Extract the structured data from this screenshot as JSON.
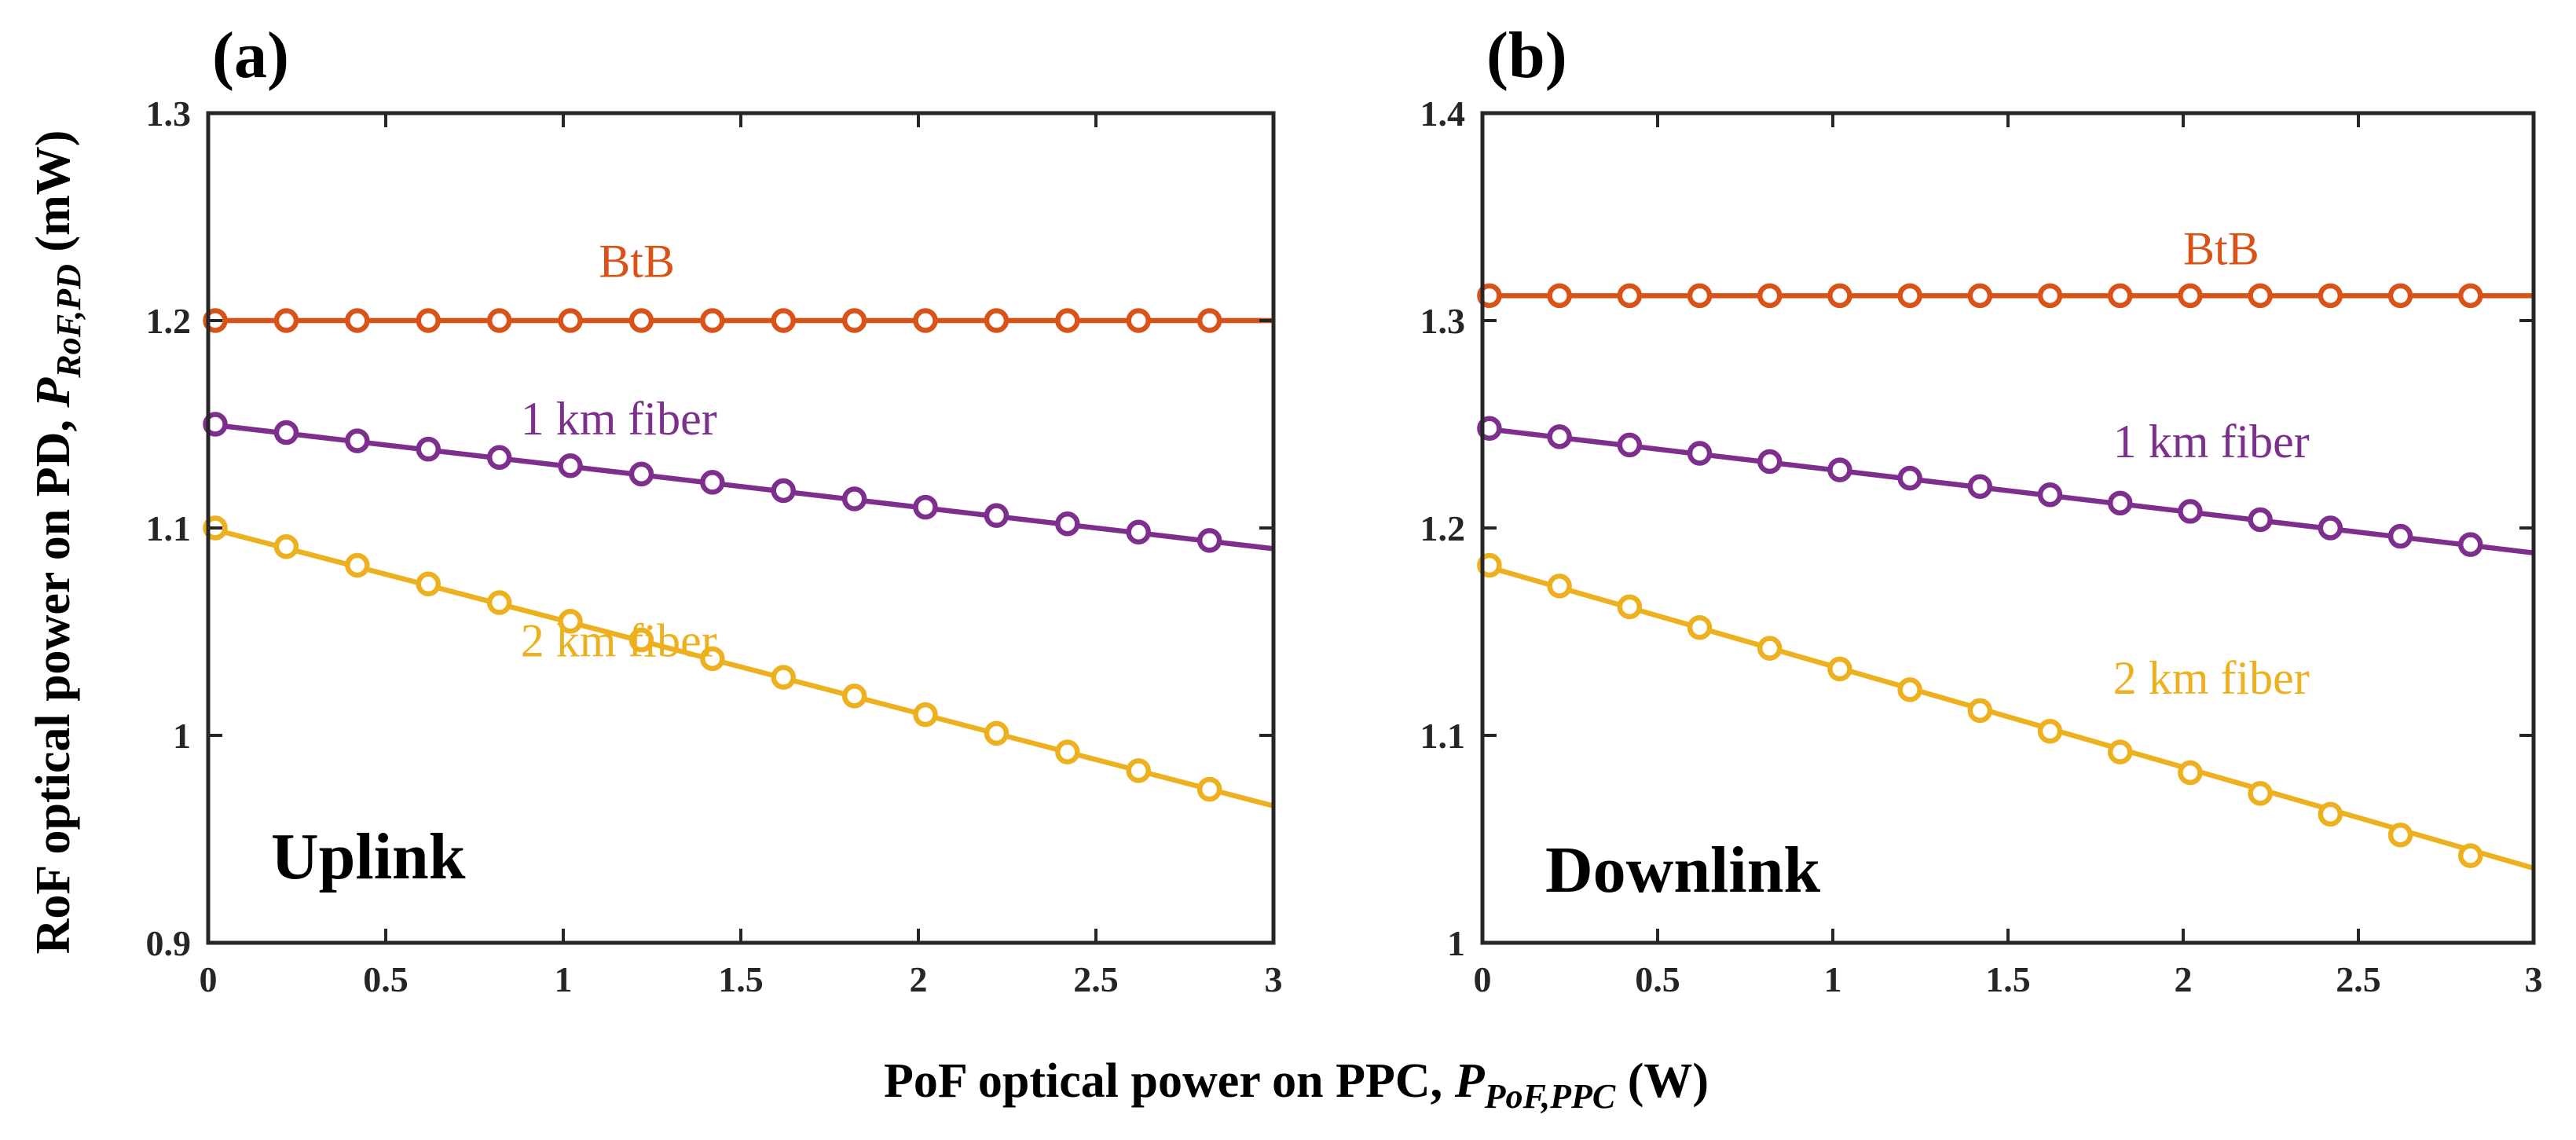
{
  "ylabel": {
    "main": "RoF optical power on PD, ",
    "sym": "P",
    "sub": "RoF,PD",
    "unit": " (mW)"
  },
  "xlabel": {
    "main": "PoF optical power on PPC, ",
    "sym": "P",
    "sub": "PoF,PPC",
    "unit": "  (W)"
  },
  "colors": {
    "btb": "#D95319",
    "km1": "#7E2F8E",
    "km2": "#EDB120",
    "axis": "#262626"
  },
  "chart_data": [
    {
      "type": "line",
      "panel_label": "(a)",
      "corner_label": "Uplink",
      "xlim": [
        0,
        3
      ],
      "ylim": [
        0.9,
        1.3
      ],
      "xticks": [
        0,
        0.5,
        1,
        1.5,
        2,
        2.5,
        3
      ],
      "yticks": [
        0.9,
        1,
        1.1,
        1.2,
        1.3
      ],
      "xtick_labels": [
        "0",
        "0.5",
        "1",
        "1.5",
        "2",
        "2.5",
        "3"
      ],
      "ytick_labels": [
        "0.9",
        "1",
        "1.1",
        "1.2",
        "1.3"
      ],
      "marker_x": [
        0.02,
        0.22,
        0.42,
        0.62,
        0.82,
        1.02,
        1.22,
        1.42,
        1.62,
        1.82,
        2.02,
        2.22,
        2.42,
        2.62,
        2.82
      ],
      "series": [
        {
          "name": "BtB",
          "color_key": "btb",
          "x": [
            0.02,
            0.22,
            0.42,
            0.62,
            0.82,
            1.02,
            1.22,
            1.42,
            1.62,
            1.82,
            2.02,
            2.22,
            2.42,
            2.62,
            2.82
          ],
          "y": [
            1.2,
            1.2,
            1.2,
            1.2,
            1.2,
            1.2,
            1.2,
            1.2,
            1.2,
            1.2,
            1.2,
            1.2,
            1.2,
            1.2,
            1.2
          ],
          "line_y": [
            1.2,
            1.2
          ],
          "label_at": [
            1.1,
            1.221
          ]
        },
        {
          "name": "1 km fiber",
          "color_key": "km1",
          "x": [
            0.02,
            0.22,
            0.42,
            0.62,
            0.82,
            1.02,
            1.22,
            1.42,
            1.62,
            1.82,
            2.02,
            2.22,
            2.42,
            2.62,
            2.82
          ],
          "y": [
            1.15,
            1.146,
            1.142,
            1.138,
            1.134,
            1.13,
            1.126,
            1.122,
            1.118,
            1.114,
            1.11,
            1.106,
            1.102,
            1.098,
            1.094
          ],
          "line_y": [
            1.15,
            1.09
          ],
          "label_at": [
            0.88,
            1.145
          ]
        },
        {
          "name": "2 km fiber",
          "color_key": "km2",
          "x": [
            0.02,
            0.22,
            0.42,
            0.62,
            0.82,
            1.02,
            1.22,
            1.42,
            1.62,
            1.82,
            2.02,
            2.22,
            2.42,
            2.62,
            2.82
          ],
          "y": [
            1.1,
            1.091,
            1.082,
            1.073,
            1.064,
            1.055,
            1.046,
            1.037,
            1.028,
            1.019,
            1.01,
            1.001,
            0.992,
            0.983,
            0.974
          ],
          "line_y": [
            1.1,
            0.966
          ],
          "label_at": [
            0.88,
            1.038
          ]
        }
      ]
    },
    {
      "type": "line",
      "panel_label": "(b)",
      "corner_label": "Downlink",
      "xlim": [
        0,
        3
      ],
      "ylim": [
        1,
        1.4
      ],
      "xticks": [
        0,
        0.5,
        1,
        1.5,
        2,
        2.5,
        3
      ],
      "yticks": [
        1,
        1.1,
        1.2,
        1.3,
        1.4
      ],
      "xtick_labels": [
        "0",
        "0.5",
        "1",
        "1.5",
        "2",
        "2.5",
        "3"
      ],
      "ytick_labels": [
        "1",
        "1.1",
        "1.2",
        "1.3",
        "1.4"
      ],
      "marker_x": [
        0.02,
        0.22,
        0.42,
        0.62,
        0.82,
        1.02,
        1.22,
        1.42,
        1.62,
        1.82,
        2.02,
        2.22,
        2.42,
        2.62,
        2.82
      ],
      "series": [
        {
          "name": "BtB",
          "color_key": "btb",
          "x": [
            0.02,
            0.22,
            0.42,
            0.62,
            0.82,
            1.02,
            1.22,
            1.42,
            1.62,
            1.82,
            2.02,
            2.22,
            2.42,
            2.62,
            2.82
          ],
          "y": [
            1.312,
            1.312,
            1.312,
            1.312,
            1.312,
            1.312,
            1.312,
            1.312,
            1.312,
            1.312,
            1.312,
            1.312,
            1.312,
            1.312,
            1.312
          ],
          "line_y": [
            1.312,
            1.312
          ],
          "label_at": [
            2.0,
            1.327
          ]
        },
        {
          "name": "1 km fiber",
          "color_key": "km1",
          "x": [
            0.02,
            0.22,
            0.42,
            0.62,
            0.82,
            1.02,
            1.22,
            1.42,
            1.62,
            1.82,
            2.02,
            2.22,
            2.42,
            2.62,
            2.82
          ],
          "y": [
            1.248,
            1.244,
            1.24,
            1.236,
            1.232,
            1.228,
            1.224,
            1.22,
            1.216,
            1.212,
            1.208,
            1.204,
            1.2,
            1.196,
            1.192
          ],
          "line_y": [
            1.248,
            1.188
          ],
          "label_at": [
            1.8,
            1.234
          ]
        },
        {
          "name": "2 km fiber",
          "color_key": "km2",
          "x": [
            0.02,
            0.22,
            0.42,
            0.62,
            0.82,
            1.02,
            1.22,
            1.42,
            1.62,
            1.82,
            2.02,
            2.22,
            2.42,
            2.62,
            2.82
          ],
          "y": [
            1.182,
            1.172,
            1.162,
            1.152,
            1.142,
            1.132,
            1.122,
            1.112,
            1.102,
            1.092,
            1.082,
            1.072,
            1.062,
            1.052,
            1.042
          ],
          "line_y": [
            1.182,
            1.036
          ],
          "label_at": [
            1.8,
            1.12
          ]
        }
      ]
    }
  ]
}
